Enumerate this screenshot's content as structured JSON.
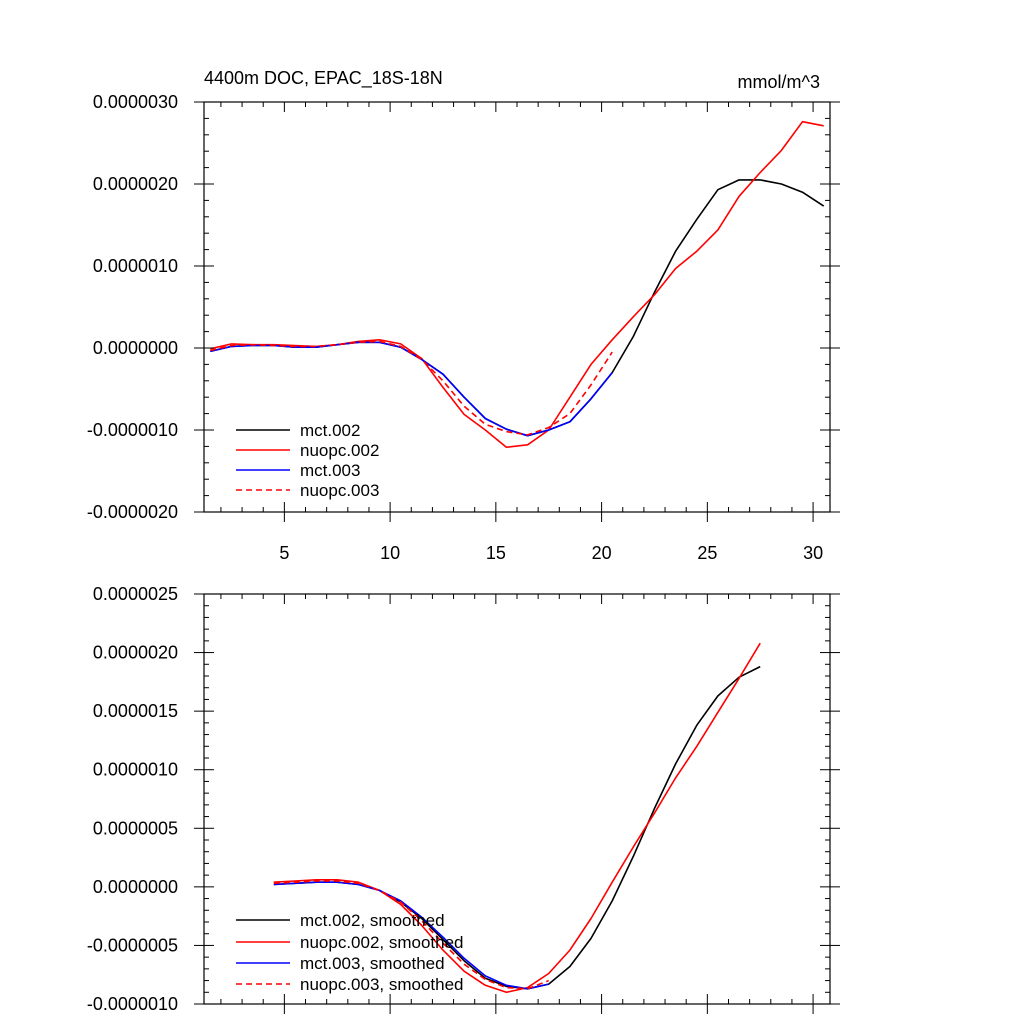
{
  "chart_data": [
    {
      "type": "line",
      "title": "4400m DOC, EPAC_18S-18N",
      "units_label": "mmol/m^3",
      "xlim": [
        1.2,
        30.8
      ],
      "ylim": [
        -2e-06,
        3e-06
      ],
      "x_ticks": [
        5,
        10,
        15,
        20,
        25,
        30
      ],
      "x_tick_labels": [
        "5",
        "10",
        "15",
        "20",
        "25",
        "30"
      ],
      "y_ticks": [
        -2e-06,
        -1e-06,
        0,
        1e-06,
        2e-06,
        3e-06
      ],
      "y_tick_labels": [
        "-0.0000020",
        "-0.0000010",
        "0.0000000",
        "0.0000010",
        "0.0000020",
        "0.0000030"
      ],
      "legend": [
        "mct.002",
        "nuopc.002",
        "mct.003",
        "nuopc.003"
      ],
      "series": [
        {
          "name": "mct.002",
          "color": "#000000",
          "dash": "solid",
          "x": [
            1.5,
            2.5,
            3.5,
            4.5,
            5.5,
            6.5,
            7.5,
            8.5,
            9.5,
            10.5,
            11.5,
            12.5,
            13.5,
            14.5,
            15.5,
            16.5,
            17.5,
            18.5,
            19.5,
            20.5,
            21.5,
            22.5,
            23.5,
            24.5,
            25.5,
            26.5,
            27.5,
            28.5,
            29.5,
            30.5
          ],
          "values": [
            -4e-08,
            2e-08,
            3e-08,
            3e-08,
            1e-08,
            1e-08,
            4e-08,
            7e-08,
            7e-08,
            1e-08,
            -1.4e-07,
            -3.2e-07,
            -6e-07,
            -8.6e-07,
            -9.9e-07,
            -1.07e-06,
            -1e-06,
            -9e-07,
            -6.2e-07,
            -3e-07,
            1.4e-07,
            6.8e-07,
            1.18e-06,
            1.57e-06,
            1.93e-06,
            2.05e-06,
            2.05e-06,
            2e-06,
            1.9e-06,
            1.73e-06
          ]
        },
        {
          "name": "nuopc.002",
          "color": "#ff0000",
          "dash": "solid",
          "x": [
            1.5,
            2.5,
            3.5,
            4.5,
            5.5,
            6.5,
            7.5,
            8.5,
            9.5,
            10.5,
            11.5,
            12.5,
            13.5,
            14.5,
            15.5,
            16.5,
            17.5,
            18.5,
            19.5,
            20.5,
            21.5,
            22.5,
            23.5,
            24.5,
            25.5,
            26.5,
            27.5,
            28.5,
            29.5,
            30.5
          ],
          "values": [
            -1e-08,
            5e-08,
            4e-08,
            4e-08,
            3e-08,
            2e-08,
            4e-08,
            8e-08,
            1e-07,
            5e-08,
            -1.3e-07,
            -4.8e-07,
            -8.1e-07,
            -1e-06,
            -1.21e-06,
            -1.18e-06,
            -1e-06,
            -6e-07,
            -2e-07,
            1e-07,
            3.8e-07,
            6.5e-07,
            9.7e-07,
            1.18e-06,
            1.44e-06,
            1.85e-06,
            2.14e-06,
            2.41e-06,
            2.76e-06,
            2.71e-06
          ]
        },
        {
          "name": "mct.003",
          "color": "#0000ff",
          "dash": "solid",
          "x": [
            1.5,
            2.5,
            3.5,
            4.5,
            5.5,
            6.5,
            7.5,
            8.5,
            9.5,
            10.5,
            11.5,
            12.5,
            13.5,
            14.5,
            15.5,
            16.5,
            17.5,
            18.5,
            19.5,
            20.5
          ],
          "values": [
            -4e-08,
            2e-08,
            3e-08,
            3e-08,
            1e-08,
            1e-08,
            4e-08,
            7e-08,
            7e-08,
            1e-08,
            -1.4e-07,
            -3.2e-07,
            -6e-07,
            -8.6e-07,
            -9.9e-07,
            -1.07e-06,
            -1e-06,
            -9e-07,
            -6.2e-07,
            -3e-07
          ]
        },
        {
          "name": "nuopc.003",
          "color": "#ff0000",
          "dash": "dashed",
          "x": [
            1.5,
            2.5,
            3.5,
            4.5,
            5.5,
            6.5,
            7.5,
            8.5,
            9.5,
            10.5,
            11.5,
            12.5,
            13.5,
            14.5,
            15.5,
            16.5,
            17.5,
            18.5,
            19.5,
            20.5
          ],
          "values": [
            -3e-08,
            3e-08,
            4e-08,
            3e-08,
            2e-08,
            2e-08,
            4e-08,
            7e-08,
            8e-08,
            2e-08,
            -1.4e-07,
            -4e-07,
            -7.1e-07,
            -9.3e-07,
            -1.02e-06,
            -1.06e-06,
            -9.7e-07,
            -8e-07,
            -4.5e-07,
            -5e-08
          ]
        }
      ]
    },
    {
      "type": "line",
      "title": "",
      "xlim": [
        1.2,
        30.8
      ],
      "ylim": [
        -1e-06,
        2.5e-06
      ],
      "x_ticks": [
        5,
        10,
        15,
        20,
        25,
        30
      ],
      "x_tick_labels": [],
      "y_ticks": [
        -1e-06,
        -5e-07,
        0,
        5e-07,
        1e-06,
        1.5e-06,
        2e-06,
        2.5e-06
      ],
      "y_tick_labels": [
        "-0.0000010",
        "-0.0000005",
        "0.0000000",
        "0.0000005",
        "0.0000010",
        "0.0000015",
        "0.0000020",
        "0.0000025"
      ],
      "legend": [
        "mct.002, smoothed",
        "nuopc.002, smoothed",
        "mct.003, smoothed",
        "nuopc.003, smoothed"
      ],
      "series": [
        {
          "name": "mct.002, smoothed",
          "color": "#000000",
          "dash": "solid",
          "x": [
            4.5,
            5.5,
            6.5,
            7.5,
            8.5,
            9.5,
            10.5,
            11.5,
            12.5,
            13.5,
            14.5,
            15.5,
            16.5,
            17.5,
            18.5,
            19.5,
            20.5,
            21.5,
            22.5,
            23.5,
            24.5,
            25.5,
            26.5,
            27.5
          ],
          "values": [
            2e-08,
            3e-08,
            4e-08,
            4e-08,
            2e-08,
            -3e-08,
            -1.3e-07,
            -2.7e-07,
            -4.5e-07,
            -6.3e-07,
            -7.8e-07,
            -8.5e-07,
            -8.7e-07,
            -8.3e-07,
            -6.8e-07,
            -4.4e-07,
            -1.2e-07,
            2.6e-07,
            6.7e-07,
            1.05e-06,
            1.38e-06,
            1.63e-06,
            1.79e-06,
            1.88e-06
          ]
        },
        {
          "name": "nuopc.002, smoothed",
          "color": "#ff0000",
          "dash": "solid",
          "x": [
            4.5,
            5.5,
            6.5,
            7.5,
            8.5,
            9.5,
            10.5,
            11.5,
            12.5,
            13.5,
            14.5,
            15.5,
            16.5,
            17.5,
            18.5,
            19.5,
            20.5,
            21.5,
            22.5,
            23.5,
            24.5,
            25.5,
            26.5,
            27.5
          ],
          "values": [
            4e-08,
            5e-08,
            6e-08,
            6e-08,
            4e-08,
            -3e-08,
            -1.5e-07,
            -3.3e-07,
            -5.4e-07,
            -7.2e-07,
            -8.4e-07,
            -9e-07,
            -8.6e-07,
            -7.4e-07,
            -5.4e-07,
            -2.7e-07,
            4e-08,
            3.4e-07,
            6.3e-07,
            9.3e-07,
            1.2e-06,
            1.49e-06,
            1.78e-06,
            2.08e-06
          ]
        },
        {
          "name": "mct.003, smoothed",
          "color": "#0000ff",
          "dash": "solid",
          "x": [
            4.5,
            5.5,
            6.5,
            7.5,
            8.5,
            9.5,
            10.5,
            11.5,
            12.5,
            13.5,
            14.5,
            15.5,
            16.5,
            17.5
          ],
          "values": [
            2e-08,
            3e-08,
            4e-08,
            4e-08,
            2e-08,
            -3e-08,
            -1.2e-07,
            -2.6e-07,
            -4.3e-07,
            -6.1e-07,
            -7.6e-07,
            -8.4e-07,
            -8.7e-07,
            -8.3e-07
          ]
        },
        {
          "name": "nuopc.003, smoothed",
          "color": "#ff0000",
          "dash": "dashed",
          "x": [
            4.5,
            5.5,
            6.5,
            7.5,
            8.5,
            9.5,
            10.5,
            11.5,
            12.5,
            13.5,
            14.5,
            15.5,
            16.5,
            17.5
          ],
          "values": [
            3e-08,
            4e-08,
            5e-08,
            5e-08,
            3e-08,
            -3e-08,
            -1.3e-07,
            -2.9e-07,
            -4.8e-07,
            -6.6e-07,
            -7.9e-07,
            -8.6e-07,
            -8.7e-07,
            -8e-07
          ]
        }
      ]
    }
  ]
}
